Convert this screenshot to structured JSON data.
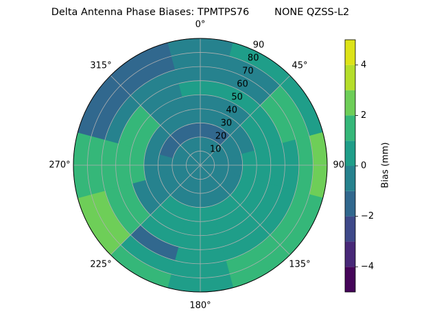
{
  "chart_data": {
    "type": "polar_contour",
    "title": "Delta Antenna Phase Biases: TPMTPS76        NONE QZSS-L2",
    "colorbar_label": "Bias (mm)",
    "levels": [
      -5,
      -4,
      -3,
      -2,
      -1,
      0,
      1,
      2,
      3,
      4,
      5
    ],
    "colors": [
      "#450559",
      "#482878",
      "#3e4989",
      "#31688e",
      "#26828e",
      "#1f9e89",
      "#35b779",
      "#6ece58",
      "#b5de2b",
      "#dde318"
    ],
    "clim": [
      -5,
      5
    ],
    "cticks": [
      {
        "value": -4,
        "label": "−4"
      },
      {
        "value": -2,
        "label": "−2"
      },
      0,
      2,
      4
    ],
    "rlim": [
      0,
      90
    ],
    "rticks": [
      10,
      20,
      30,
      40,
      50,
      60,
      70,
      80,
      90
    ],
    "thetaticks": [
      {
        "value": 0,
        "label": "0°"
      },
      {
        "value": 45,
        "label": "45°"
      },
      {
        "value": 90,
        "label": "90°"
      },
      {
        "value": 135,
        "label": "135°"
      },
      {
        "value": 180,
        "label": "180°"
      },
      {
        "value": 225,
        "label": "225°"
      },
      {
        "value": 270,
        "label": "270°"
      },
      {
        "value": 315,
        "label": "315°"
      }
    ],
    "grid": true,
    "azimuth_bins": [
      -15,
      15,
      45,
      75,
      105,
      135,
      165,
      195,
      225,
      255,
      285,
      315,
      345
    ],
    "zenith_bins": [
      0,
      10,
      20,
      30,
      40,
      50,
      60,
      70,
      80,
      90
    ],
    "z": [
      [
        -0.5,
        -0.5,
        -0.5,
        -0.5,
        -0.5,
        -0.5,
        -0.5,
        -0.5,
        -0.5,
        -0.5,
        -0.5,
        -0.5
      ],
      [
        -0.5,
        -0.5,
        -0.5,
        -0.5,
        -0.5,
        -0.5,
        -0.5,
        -0.5,
        -0.5,
        -0.5,
        -0.5,
        -0.5
      ],
      [
        -1.5,
        -1.5,
        -0.5,
        -0.5,
        -0.5,
        -0.5,
        -0.5,
        -0.5,
        -0.5,
        -0.5,
        -1.5,
        -1.5
      ],
      [
        -0.5,
        -0.5,
        -0.5,
        0.5,
        0.5,
        0.5,
        0.5,
        0.5,
        -0.5,
        -0.5,
        -0.5,
        -0.5
      ],
      [
        -0.5,
        -0.5,
        0.5,
        0.5,
        0.5,
        0.5,
        0.5,
        0.5,
        -0.5,
        1.5,
        1.5,
        -0.5
      ],
      [
        0.5,
        0.5,
        0.5,
        0.5,
        0.5,
        0.5,
        0.5,
        0.5,
        1.5,
        1.5,
        1.5,
        -0.5
      ],
      [
        -0.5,
        -0.5,
        1.5,
        0.5,
        0.5,
        0.5,
        0.5,
        -1.5,
        1.5,
        1.5,
        -0.5,
        -0.5
      ],
      [
        -0.5,
        -0.5,
        1.5,
        1.5,
        1.5,
        1.5,
        0.5,
        0.5,
        2.5,
        1.5,
        -1.5,
        -1.5
      ],
      [
        -0.5,
        0.5,
        0.5,
        2.5,
        1.5,
        1.5,
        0.5,
        1.5,
        2.5,
        1.5,
        -1.5,
        -1.5
      ]
    ]
  }
}
